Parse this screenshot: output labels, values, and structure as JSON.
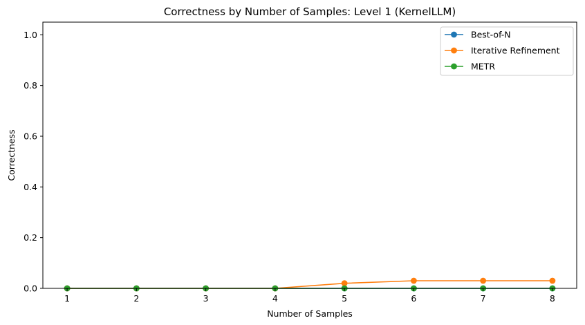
{
  "chart_data": {
    "type": "line",
    "title": "Correctness by Number of Samples: Level 1 (KernelLLM)",
    "xlabel": "Number of Samples",
    "ylabel": "Correctness",
    "x": [
      1,
      2,
      3,
      4,
      5,
      6,
      7,
      8
    ],
    "xlim": [
      0.65,
      8.35
    ],
    "ylim": [
      0,
      1.05
    ],
    "yticks": [
      "0.0",
      "0.2",
      "0.4",
      "0.6",
      "0.8",
      "1.0"
    ],
    "xticks": [
      "1",
      "2",
      "3",
      "4",
      "5",
      "6",
      "7",
      "8"
    ],
    "grid": false,
    "legend_position": "top-right",
    "series": [
      {
        "name": "Best-of-N",
        "color": "#1f77b4",
        "values": [
          0,
          0,
          0,
          0,
          0,
          0,
          0,
          0
        ]
      },
      {
        "name": "Iterative Refinement",
        "color": "#ff7f0e",
        "values": [
          0,
          0,
          0,
          0,
          0.02,
          0.03,
          0.03,
          0.03
        ]
      },
      {
        "name": "METR",
        "color": "#2ca02c",
        "values": [
          0,
          0,
          0,
          0,
          0,
          0,
          0,
          0
        ]
      }
    ]
  }
}
